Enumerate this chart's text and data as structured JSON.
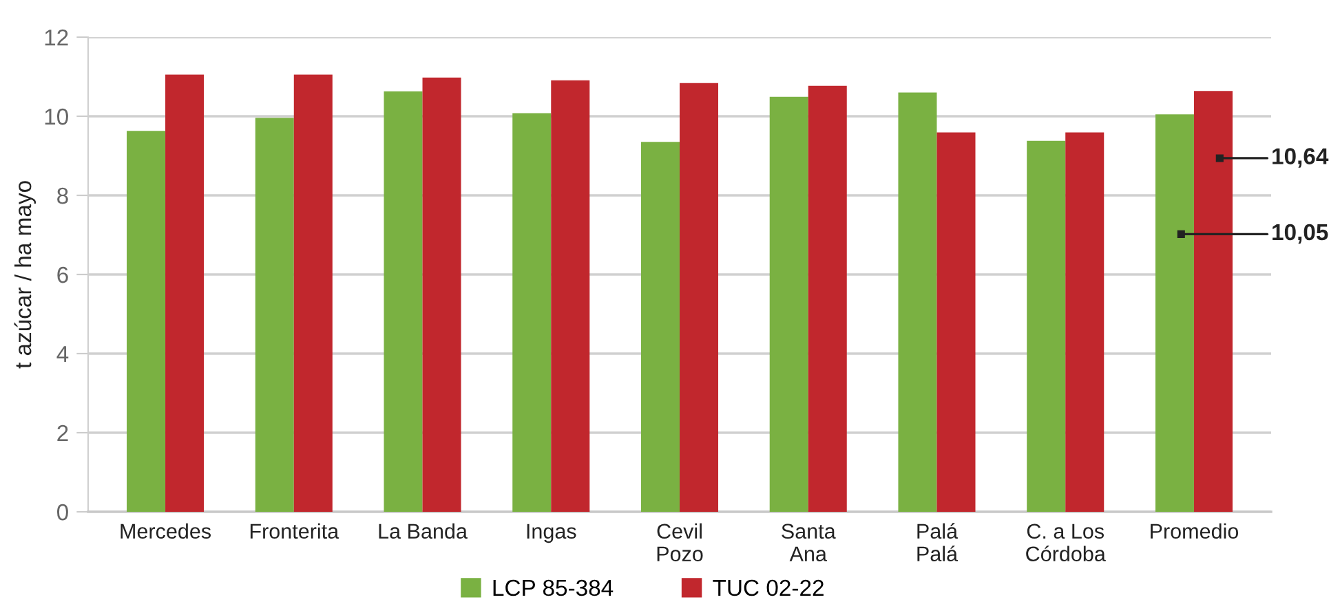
{
  "chart_data": {
    "type": "bar",
    "ylabel": "t azúcar / ha mayo",
    "categories": [
      "Mercedes",
      "Fronterita",
      "La Banda",
      "Ingas",
      "Cevil\nPozo",
      "Santa\nAna",
      "Palá\nPalá",
      "C. a Los\nCórdoba",
      "Promedio"
    ],
    "series": [
      {
        "name": "LCP 85-384",
        "color": "#7ab142",
        "values": [
          9.63,
          9.96,
          10.63,
          10.08,
          9.35,
          10.49,
          10.6,
          9.38,
          10.05
        ]
      },
      {
        "name": "TUC 02-22",
        "color": "#c1272d",
        "values": [
          11.05,
          11.05,
          10.98,
          10.91,
          10.84,
          10.77,
          9.59,
          9.59,
          10.64
        ]
      }
    ],
    "ylim": [
      0,
      12
    ],
    "yticks": [
      0,
      2,
      4,
      6,
      8,
      10,
      12
    ],
    "grid": "y",
    "legend": "bottom",
    "annotations": [
      "10,64",
      "10,05"
    ]
  }
}
